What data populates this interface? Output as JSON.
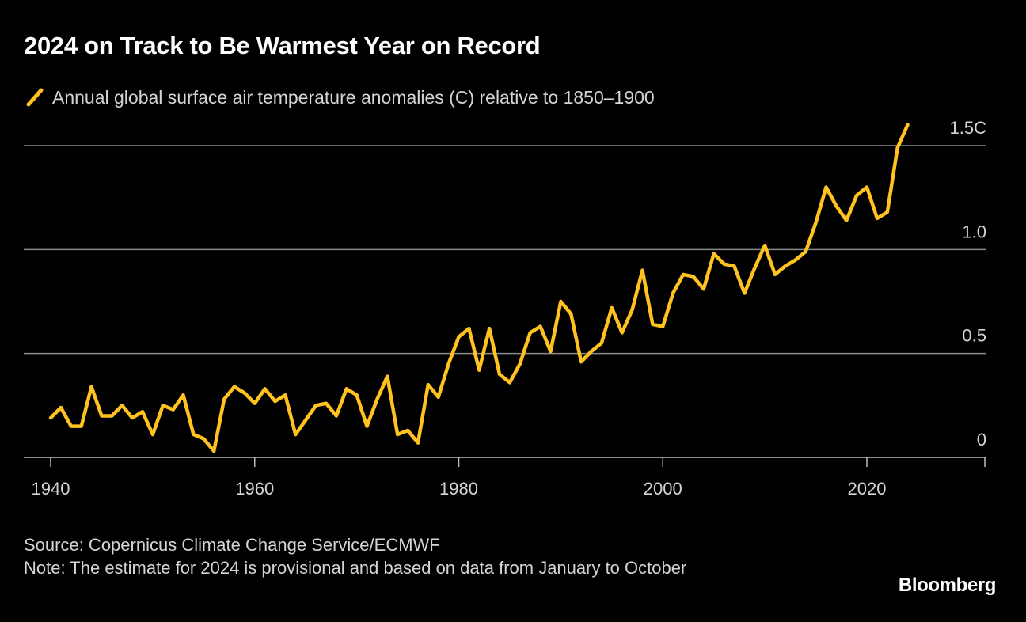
{
  "title": "2024 on Track to Be Warmest Year on Record",
  "legend": {
    "label": "Annual global surface air temperature anomalies (C) relative to 1850–1900"
  },
  "colors": {
    "background": "#000000",
    "series": "#ffc21f",
    "grid": "#8a8a8a",
    "text": "#ffffff",
    "muted_text": "#d4d4d4"
  },
  "chart_data": {
    "type": "line",
    "title": "2024 on Track to Be Warmest Year on Record",
    "xlabel": "",
    "ylabel": "",
    "xlim": [
      1937,
      2031
    ],
    "ylim": [
      0,
      1.5
    ],
    "grid": true,
    "legend_placement": "top-left",
    "x_ticks": [
      {
        "value": 1940,
        "label": "1940"
      },
      {
        "value": 1960,
        "label": "1960"
      },
      {
        "value": 1980,
        "label": "1980"
      },
      {
        "value": 2000,
        "label": "2000"
      },
      {
        "value": 2020,
        "label": "2020"
      }
    ],
    "y_ticks": [
      {
        "value": 0,
        "label": "0"
      },
      {
        "value": 0.5,
        "label": "0.5"
      },
      {
        "value": 1.0,
        "label": "1.0"
      },
      {
        "value": 1.5,
        "label": "1.5C"
      }
    ],
    "series": [
      {
        "name": "Annual global surface air temperature anomalies (C) relative to 1850–1900",
        "x": [
          1940,
          1941,
          1942,
          1943,
          1944,
          1945,
          1946,
          1947,
          1948,
          1949,
          1950,
          1951,
          1952,
          1953,
          1954,
          1955,
          1956,
          1957,
          1958,
          1959,
          1960,
          1961,
          1962,
          1963,
          1964,
          1965,
          1966,
          1967,
          1968,
          1969,
          1970,
          1971,
          1972,
          1973,
          1974,
          1975,
          1976,
          1977,
          1978,
          1979,
          1980,
          1981,
          1982,
          1983,
          1984,
          1985,
          1986,
          1987,
          1988,
          1989,
          1990,
          1991,
          1992,
          1993,
          1994,
          1995,
          1996,
          1997,
          1998,
          1999,
          2000,
          2001,
          2002,
          2003,
          2004,
          2005,
          2006,
          2007,
          2008,
          2009,
          2010,
          2011,
          2012,
          2013,
          2014,
          2015,
          2016,
          2017,
          2018,
          2019,
          2020,
          2021,
          2022,
          2023,
          2024
        ],
        "values": [
          0.19,
          0.24,
          0.15,
          0.15,
          0.34,
          0.2,
          0.2,
          0.25,
          0.19,
          0.22,
          0.11,
          0.25,
          0.23,
          0.3,
          0.11,
          0.09,
          0.03,
          0.28,
          0.34,
          0.31,
          0.26,
          0.33,
          0.27,
          0.3,
          0.11,
          0.18,
          0.25,
          0.26,
          0.2,
          0.33,
          0.3,
          0.15,
          0.28,
          0.39,
          0.11,
          0.13,
          0.07,
          0.35,
          0.29,
          0.45,
          0.58,
          0.62,
          0.42,
          0.62,
          0.4,
          0.36,
          0.45,
          0.6,
          0.63,
          0.51,
          0.75,
          0.69,
          0.46,
          0.51,
          0.55,
          0.72,
          0.6,
          0.71,
          0.9,
          0.64,
          0.63,
          0.79,
          0.88,
          0.87,
          0.81,
          0.98,
          0.93,
          0.92,
          0.79,
          0.91,
          1.02,
          0.88,
          0.92,
          0.95,
          0.99,
          1.13,
          1.3,
          1.21,
          1.14,
          1.26,
          1.3,
          1.15,
          1.18,
          1.49,
          1.6
        ]
      }
    ]
  },
  "footer": {
    "source": "Source: Copernicus Climate Change Service/ECMWF",
    "note": "Note: The estimate for 2024 is provisional and based on data from January to October"
  },
  "brand": "Bloomberg"
}
